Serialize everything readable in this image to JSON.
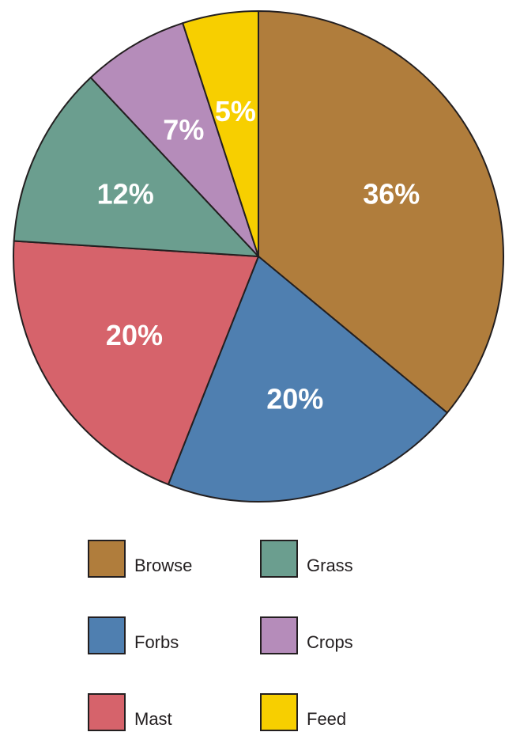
{
  "chart_data": {
    "type": "pie",
    "title": "",
    "slices": [
      {
        "label": "Browse",
        "value": 36,
        "display": "36%",
        "color": "#b07d3c"
      },
      {
        "label": "Forbs",
        "value": 20,
        "display": "20%",
        "color": "#4f7fb0"
      },
      {
        "label": "Mast",
        "value": 20,
        "display": "20%",
        "color": "#d6636b"
      },
      {
        "label": "Grass",
        "value": 12,
        "display": "12%",
        "color": "#6b9e8f"
      },
      {
        "label": "Crops",
        "value": 7,
        "display": "7%",
        "color": "#b58cba"
      },
      {
        "label": "Feed",
        "value": 5,
        "display": "5%",
        "color": "#f7cf00"
      }
    ],
    "start_angle_deg": 0,
    "direction": "clockwise",
    "legend": {
      "placement": "bottom",
      "columns": [
        [
          "Browse",
          "Forbs",
          "Mast"
        ],
        [
          "Grass",
          "Crops",
          "Feed"
        ]
      ]
    }
  }
}
